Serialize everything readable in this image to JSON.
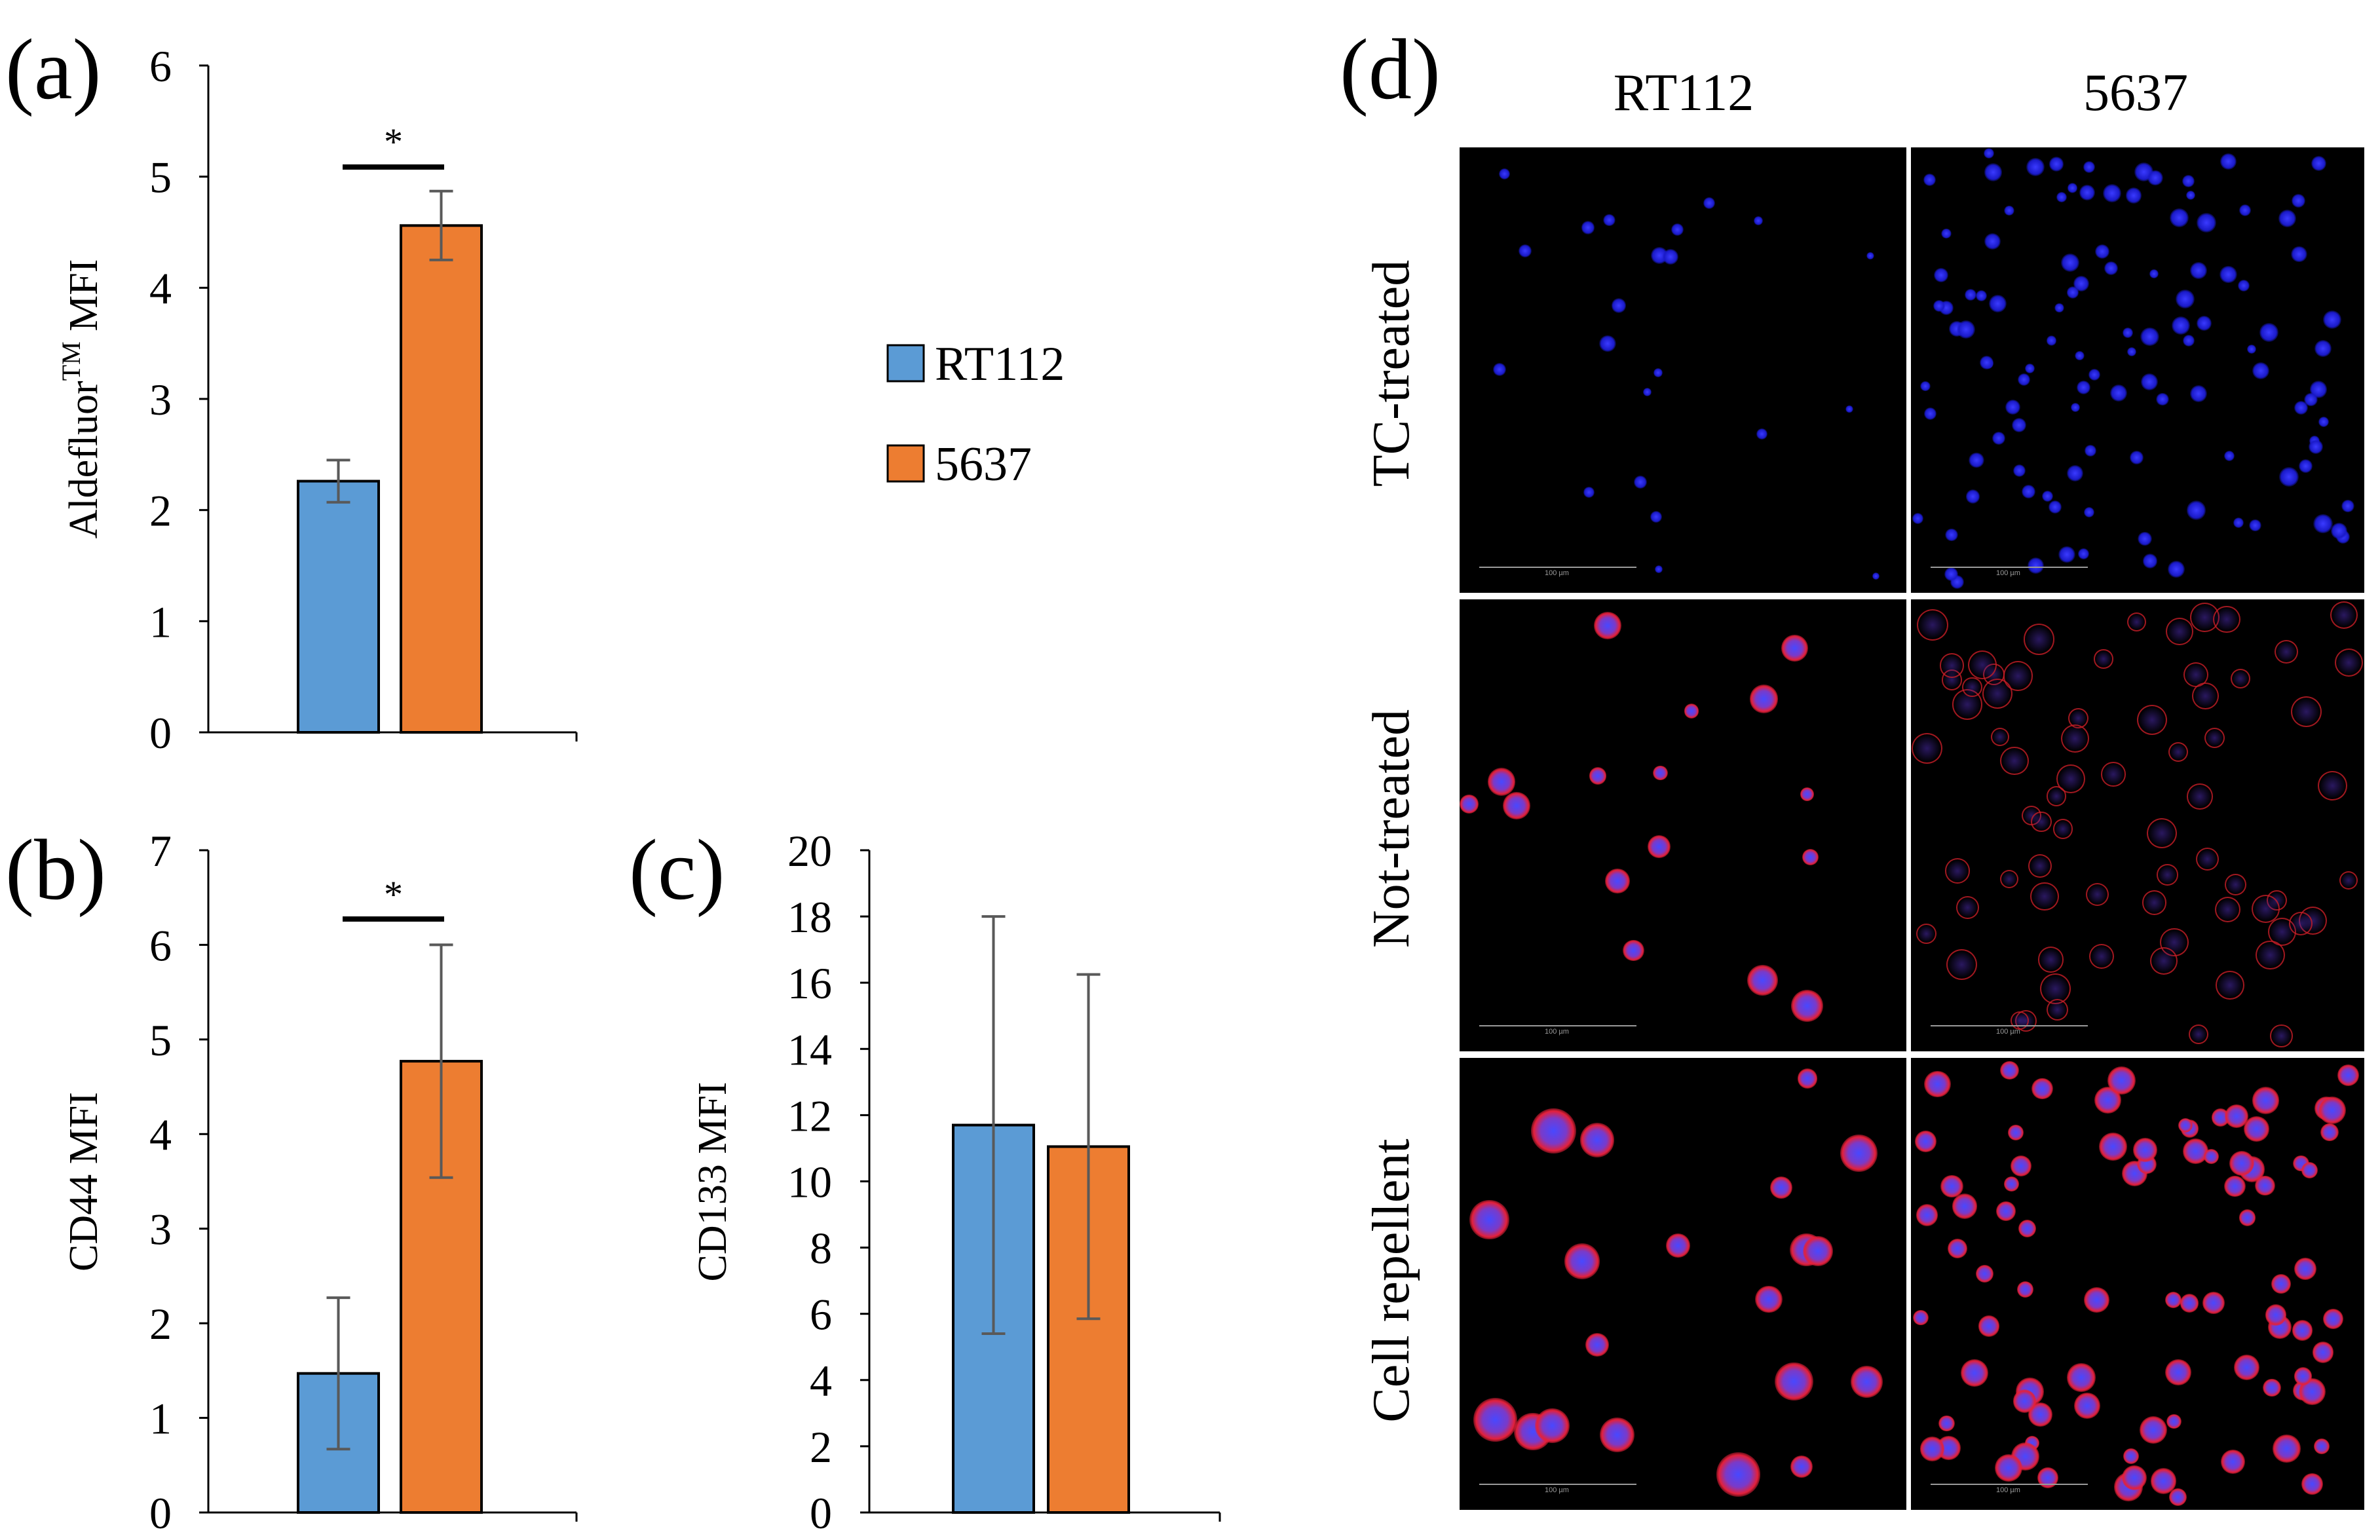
{
  "chart_data": [
    {
      "panel_label": "(a)",
      "type": "bar",
      "title": "",
      "ylabel": "Aldefluor™ MFI",
      "ylabel_main": "Aldefluor",
      "ylabel_sup": "TM",
      "ylabel_tail": " MFI",
      "ylim": [
        0,
        6
      ],
      "yticks": [
        "0",
        "1",
        "2",
        "3",
        "4",
        "5",
        "6"
      ],
      "series": [
        {
          "name": "RT112",
          "value": 2.26,
          "error": 0.19
        },
        {
          "name": "5637",
          "value": 4.56,
          "error": 0.31
        }
      ],
      "significance": "*"
    },
    {
      "panel_label": "(b)",
      "type": "bar",
      "title": "",
      "ylabel": "CD44 MFI",
      "ylim": [
        0,
        7
      ],
      "yticks": [
        "0",
        "1",
        "2",
        "3",
        "4",
        "5",
        "6",
        "7"
      ],
      "series": [
        {
          "name": "RT112",
          "value": 1.47,
          "error": 0.8
        },
        {
          "name": "5637",
          "value": 4.77,
          "error": 1.23
        }
      ],
      "significance": "*"
    },
    {
      "panel_label": "(c)",
      "type": "bar",
      "title": "",
      "ylabel": "CD133 MFI",
      "ylim": [
        0,
        20
      ],
      "yticks": [
        "0",
        "2",
        "4",
        "6",
        "8",
        "10",
        "12",
        "14",
        "16",
        "18",
        "20"
      ],
      "series": [
        {
          "name": "RT112",
          "value": 11.7,
          "error": 6.3
        },
        {
          "name": "5637",
          "value": 11.05,
          "error": 5.2
        }
      ],
      "significance": ""
    }
  ],
  "legend": {
    "items": [
      {
        "label": "RT112",
        "color": "#5b9bd5"
      },
      {
        "label": "5637",
        "color": "#ed7d31"
      }
    ]
  },
  "colors": {
    "bar_edge": "#000000",
    "error_bar": "#595959",
    "axis": "#000000"
  },
  "microscopy": {
    "panel_label": "(d)",
    "columns": [
      "RT112",
      "5637"
    ],
    "rows": [
      "TC-treated",
      "Not-treated",
      "Cell repellent"
    ],
    "scale_label": "100 µm"
  }
}
